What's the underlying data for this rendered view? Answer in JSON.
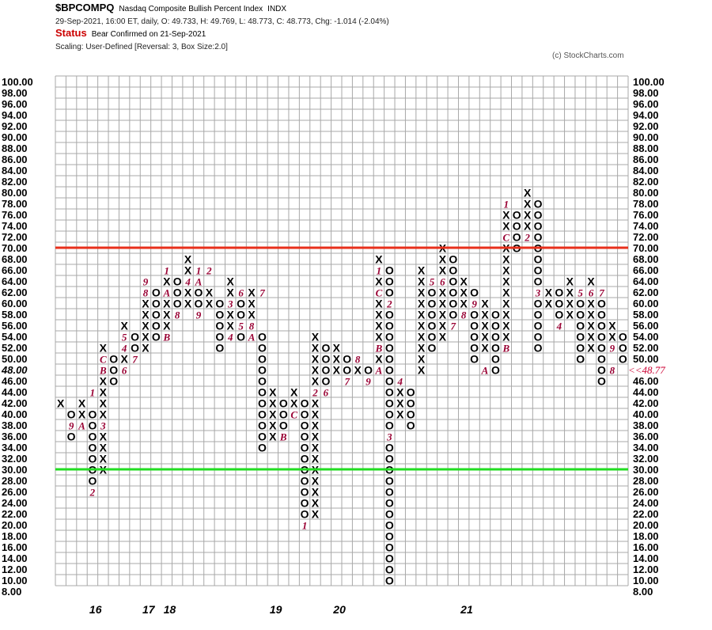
{
  "header": {
    "symbol": "$BPCOMPQ",
    "description": "Nasdaq Composite Bullish Percent Index",
    "exchange": "INDX",
    "quote": "29-Sep-2021, 16:00 ET, daily, O: 49.733, H: 49.769, L: 48.773, C: 48.773, Chg: -1.014 (-2.04%)",
    "status_label": "Status",
    "status_text": "Bear Confirmed on 21-Sep-2021",
    "scaling": "Scaling: User-Defined [Reversal: 3, Box Size:2.0]",
    "copyright": "(c) StockCharts.com"
  },
  "colors": {
    "grid": "#a8a8a8",
    "red_line": "#e8301c",
    "green_line": "#22dd22",
    "marker": "#990033",
    "current_label": "#cc0033"
  },
  "chart_data": {
    "type": "point-and-figure",
    "box_size": 2.0,
    "reversal": 3,
    "ylim": [
      8,
      100
    ],
    "y_ticks": [
      "100.00",
      "98.00",
      "96.00",
      "94.00",
      "92.00",
      "90.00",
      "88.00",
      "86.00",
      "84.00",
      "82.00",
      "80.00",
      "78.00",
      "76.00",
      "74.00",
      "72.00",
      "70.00",
      "68.00",
      "66.00",
      "64.00",
      "62.00",
      "60.00",
      "58.00",
      "56.00",
      "54.00",
      "52.00",
      "50.00",
      "48.00",
      "46.00",
      "44.00",
      "42.00",
      "40.00",
      "38.00",
      "36.00",
      "34.00",
      "32.00",
      "30.00",
      "28.00",
      "26.00",
      "24.00",
      "22.00",
      "20.00",
      "18.00",
      "16.00",
      "14.00",
      "12.00",
      "10.00",
      "8.00"
    ],
    "left_highlight_label": "48.00",
    "current_label": "<<48.77",
    "hlines": [
      {
        "y": 70,
        "color": "red"
      },
      {
        "y": 30,
        "color": "green"
      }
    ],
    "x_year_labels": [
      {
        "col": 3,
        "label": "16"
      },
      {
        "col": 8,
        "label": "17"
      },
      {
        "col": 10,
        "label": "18"
      },
      {
        "col": 20,
        "label": "19"
      },
      {
        "col": 26,
        "label": "20"
      },
      {
        "col": 38,
        "label": "21"
      }
    ],
    "columns": [
      {
        "t": "X",
        "lo": 42,
        "hi": 42
      },
      {
        "t": "O",
        "lo": 36,
        "hi": 40,
        "m": {
          "38": "9"
        }
      },
      {
        "t": "X",
        "lo": 38,
        "hi": 42,
        "m": {
          "38": "A"
        }
      },
      {
        "t": "O",
        "lo": 28,
        "hi": 40,
        "m": {
          "26": "2",
          "44": "1"
        }
      },
      {
        "t": "X",
        "lo": 30,
        "hi": 52,
        "m": {
          "48": "B",
          "50": "C",
          "38": "3"
        }
      },
      {
        "t": "O",
        "lo": 46,
        "hi": 50
      },
      {
        "t": "X",
        "lo": 48,
        "hi": 56,
        "m": {
          "54": "5",
          "48": "6",
          "52": "4"
        }
      },
      {
        "t": "O",
        "lo": 50,
        "hi": 54,
        "m": {
          "50": "7"
        }
      },
      {
        "t": "X",
        "lo": 52,
        "hi": 64,
        "m": {
          "62": "8",
          "64": "9"
        }
      },
      {
        "t": "O",
        "lo": 54,
        "hi": 62
      },
      {
        "t": "X",
        "lo": 56,
        "hi": 66,
        "m": {
          "54": "B",
          "62": "A",
          "66": "1"
        }
      },
      {
        "t": "O",
        "lo": 60,
        "hi": 64,
        "m": {
          "58": "8"
        }
      },
      {
        "t": "X",
        "lo": 60,
        "hi": 68,
        "m": {
          "64": "4"
        }
      },
      {
        "t": "O",
        "lo": 58,
        "hi": 66,
        "m": {
          "58": "9",
          "64": "A",
          "66": "1"
        }
      },
      {
        "t": "X",
        "lo": 60,
        "hi": 62,
        "m": {
          "66": "2"
        }
      },
      {
        "t": "O",
        "lo": 52,
        "hi": 60
      },
      {
        "t": "X",
        "lo": 56,
        "hi": 64,
        "m": {
          "60": "3",
          "54": "4"
        }
      },
      {
        "t": "O",
        "lo": 54,
        "hi": 60,
        "m": {
          "56": "5",
          "62": "6"
        }
      },
      {
        "t": "X",
        "lo": 56,
        "hi": 62,
        "m": {
          "54": "A",
          "56": "8"
        }
      },
      {
        "t": "O",
        "lo": 34,
        "hi": 54,
        "m": {
          "62": "7"
        }
      },
      {
        "t": "X",
        "lo": 36,
        "hi": 44
      },
      {
        "t": "O",
        "lo": 38,
        "hi": 42,
        "m": {
          "36": "B"
        }
      },
      {
        "t": "X",
        "lo": 40,
        "hi": 44,
        "m": {
          "40": "C"
        }
      },
      {
        "t": "O",
        "lo": 20,
        "hi": 42,
        "m": {
          "20": "1"
        }
      },
      {
        "t": "X",
        "lo": 22,
        "hi": 54,
        "m": {
          "44": "2"
        }
      },
      {
        "t": "O",
        "lo": 46,
        "hi": 52,
        "m": {
          "44": "6"
        }
      },
      {
        "t": "X",
        "lo": 48,
        "hi": 52
      },
      {
        "t": "O",
        "lo": 46,
        "hi": 50,
        "m": {
          "46": "7"
        }
      },
      {
        "t": "X",
        "lo": 48,
        "hi": 50,
        "m": {
          "50": "8"
        }
      },
      {
        "t": "O",
        "lo": 46,
        "hi": 48,
        "m": {
          "46": "9"
        }
      },
      {
        "t": "X",
        "lo": 48,
        "hi": 68,
        "m": {
          "48": "A",
          "52": "B",
          "62": "C",
          "66": "1"
        }
      },
      {
        "t": "O",
        "lo": 10,
        "hi": 66,
        "m": {
          "60": "2",
          "36": "3"
        }
      },
      {
        "t": "X",
        "lo": 40,
        "hi": 46,
        "m": {
          "46": "4"
        }
      },
      {
        "t": "O",
        "lo": 38,
        "hi": 44
      },
      {
        "t": "X",
        "lo": 48,
        "hi": 66
      },
      {
        "t": "O",
        "lo": 52,
        "hi": 64,
        "m": {
          "64": "5"
        }
      },
      {
        "t": "X",
        "lo": 54,
        "hi": 70,
        "m": {
          "64": "6"
        }
      },
      {
        "t": "O",
        "lo": 58,
        "hi": 68,
        "m": {
          "56": "7"
        }
      },
      {
        "t": "X",
        "lo": 60,
        "hi": 64,
        "m": {
          "58": "8"
        }
      },
      {
        "t": "O",
        "lo": 50,
        "hi": 62,
        "m": {
          "60": "9"
        }
      },
      {
        "t": "X",
        "lo": 52,
        "hi": 60,
        "m": {
          "48": "A"
        }
      },
      {
        "t": "O",
        "lo": 48,
        "hi": 58
      },
      {
        "t": "X",
        "lo": 52,
        "hi": 78,
        "m": {
          "72": "C",
          "52": "B",
          "78": "1"
        }
      },
      {
        "t": "O",
        "lo": 70,
        "hi": 76
      },
      {
        "t": "X",
        "lo": 72,
        "hi": 80,
        "m": {
          "72": "2"
        }
      },
      {
        "t": "O",
        "lo": 52,
        "hi": 78,
        "m": {
          "62": "3"
        }
      },
      {
        "t": "X",
        "lo": 60,
        "hi": 62
      },
      {
        "t": "O",
        "lo": 56,
        "hi": 62,
        "m": {
          "56": "4"
        }
      },
      {
        "t": "X",
        "lo": 58,
        "hi": 64
      },
      {
        "t": "O",
        "lo": 50,
        "hi": 62,
        "m": {
          "62": "5"
        }
      },
      {
        "t": "X",
        "lo": 52,
        "hi": 64,
        "m": {
          "62": "6"
        }
      },
      {
        "t": "O",
        "lo": 46,
        "hi": 62,
        "m": {
          "62": "7"
        }
      },
      {
        "t": "X",
        "lo": 52,
        "hi": 56,
        "m": {
          "48": "8",
          "52": "9"
        }
      },
      {
        "t": "O",
        "lo": 50,
        "hi": 54
      }
    ]
  }
}
